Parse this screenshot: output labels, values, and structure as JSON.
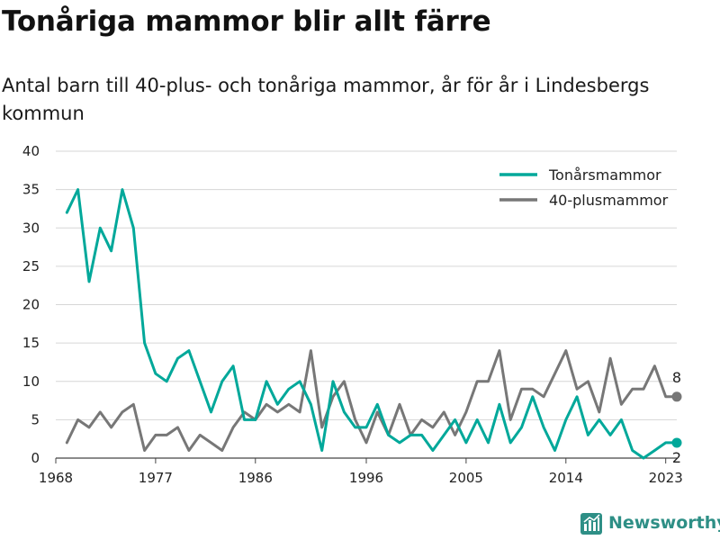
{
  "title": "Tonåriga mammor blir allt färre",
  "subtitle": "Antal barn till 40-plus- och tonåriga mammor, år för år i Lindesbergs kommun",
  "brand": {
    "name": "Newsworthy",
    "color": "#2e8f86"
  },
  "chart_data": {
    "type": "line",
    "title": "Tonåriga mammor blir allt färre",
    "subtitle": "Antal barn till 40-plus- och tonåriga mammor, år för år i Lindesbergs kommun",
    "xlabel": "",
    "ylabel": "",
    "ylim": [
      0,
      40
    ],
    "xlim": [
      1968,
      2024
    ],
    "yticks": [
      0,
      5,
      10,
      15,
      20,
      25,
      30,
      35,
      40
    ],
    "xticks": [
      "1968",
      "1977",
      "1986",
      "1996",
      "2005",
      "2014",
      "2023"
    ],
    "grid": true,
    "legend_position": "top-right",
    "x": [
      1969,
      1970,
      1971,
      1972,
      1973,
      1974,
      1975,
      1976,
      1977,
      1978,
      1979,
      1980,
      1981,
      1982,
      1983,
      1984,
      1985,
      1986,
      1987,
      1988,
      1989,
      1990,
      1991,
      1992,
      1993,
      1994,
      1995,
      1996,
      1997,
      1998,
      1999,
      2000,
      2001,
      2002,
      2003,
      2004,
      2005,
      2006,
      2007,
      2008,
      2009,
      2010,
      2011,
      2012,
      2013,
      2014,
      2015,
      2016,
      2017,
      2018,
      2019,
      2020,
      2021,
      2022,
      2023,
      2024
    ],
    "series": [
      {
        "name": "Tonårsmammor",
        "color": "#00a89a",
        "end_label": "2",
        "values": [
          32,
          35,
          23,
          30,
          27,
          35,
          30,
          15,
          11,
          10,
          13,
          14,
          10,
          6,
          10,
          12,
          5,
          5,
          10,
          7,
          9,
          10,
          7,
          1,
          10,
          6,
          4,
          4,
          7,
          3,
          2,
          3,
          3,
          1,
          3,
          5,
          2,
          5,
          2,
          7,
          2,
          4,
          8,
          4,
          1,
          5,
          8,
          3,
          5,
          3,
          5,
          1,
          0,
          1,
          2,
          2
        ]
      },
      {
        "name": "40-plusmammor",
        "color": "#777777",
        "end_label": "8",
        "values": [
          2,
          5,
          4,
          6,
          4,
          6,
          7,
          1,
          3,
          3,
          4,
          1,
          3,
          2,
          1,
          4,
          6,
          5,
          7,
          6,
          7,
          6,
          14,
          4,
          8,
          10,
          5,
          2,
          6,
          3,
          7,
          3,
          5,
          4,
          6,
          3,
          6,
          10,
          10,
          14,
          5,
          9,
          9,
          8,
          11,
          14,
          9,
          10,
          6,
          13,
          7,
          9,
          9,
          12,
          8,
          8
        ]
      }
    ]
  }
}
